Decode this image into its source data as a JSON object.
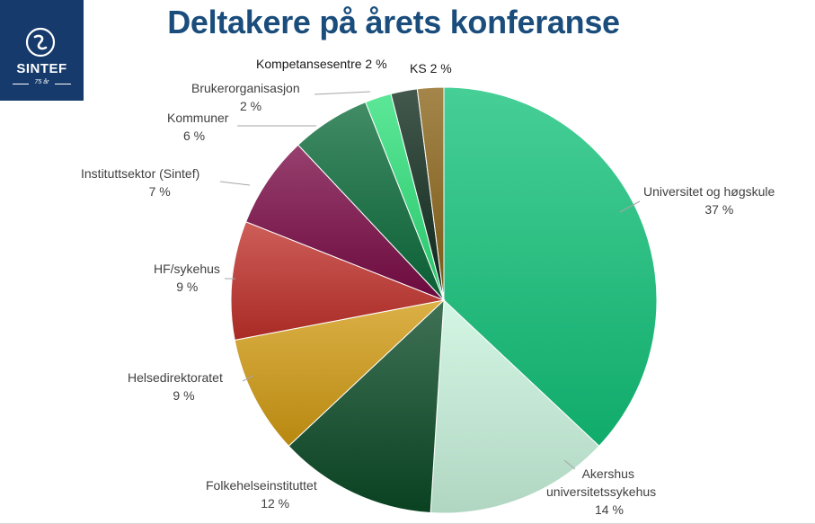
{
  "brand": {
    "name": "SINTEF",
    "tagline": "75 år"
  },
  "chart_data": {
    "type": "pie",
    "title": "Deltakere på årets konferanse",
    "unit": "%",
    "slices": [
      {
        "label": "Universitet og høgskule",
        "value": 37,
        "value_text": "37 %",
        "color": "#12c27a"
      },
      {
        "label": "Akershus universitetssykehus",
        "value": 14,
        "value_text": "14 %",
        "color": "#c8f3dc"
      },
      {
        "label": "Folkehelseinstituttet",
        "value": 12,
        "value_text": "12 %",
        "color": "#0a4a25"
      },
      {
        "label": "Helsedirektoratet",
        "value": 9,
        "value_text": "9 %",
        "color": "#d19a12"
      },
      {
        "label": "HF/sykehus",
        "value": 9,
        "value_text": "9 %",
        "color": "#c0302a"
      },
      {
        "label": "Instituttsektor (Sintef)",
        "value": 7,
        "value_text": "7 %",
        "color": "#7a0a45"
      },
      {
        "label": "Kommuner",
        "value": 6,
        "value_text": "6 %",
        "color": "#0b6b3a"
      },
      {
        "label": "Brukerorganisasjon",
        "value": 2,
        "value_text": "2 %",
        "color": "#2ee07a"
      },
      {
        "label": "Kompetansesentre",
        "value": 2,
        "value_text": "2 %",
        "color": "#0f2a1c"
      },
      {
        "label": "KS",
        "value": 2,
        "value_text": "2 %",
        "color": "#8a6418"
      }
    ]
  }
}
